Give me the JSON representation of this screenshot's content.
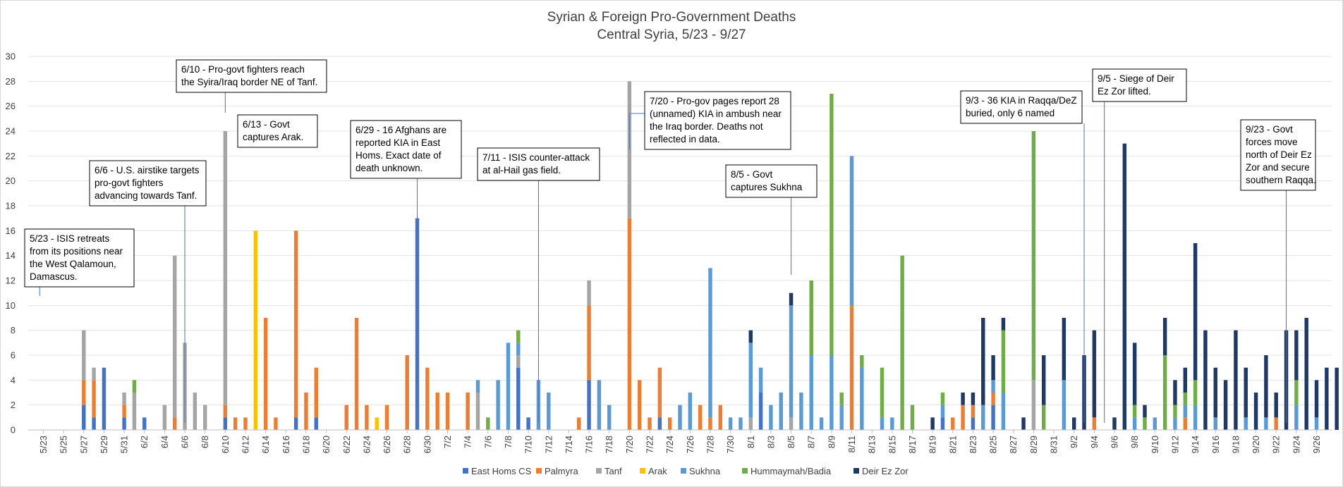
{
  "chart_data": {
    "type": "bar",
    "stacked": true,
    "title": [
      "Syrian & Foreign Pro-Government  Deaths",
      "Central Syria, 5/23 - 9/27"
    ],
    "xlabel": "",
    "ylabel": "",
    "ylim": [
      0,
      30
    ],
    "yticks": [
      0,
      2,
      4,
      6,
      8,
      10,
      12,
      14,
      16,
      18,
      20,
      22,
      24,
      26,
      28,
      30
    ],
    "grid": true,
    "legend_position": "bottom",
    "xtick_labels": [
      "5/23",
      "5/25",
      "5/27",
      "5/29",
      "5/31",
      "6/2",
      "6/4",
      "6/6",
      "6/8",
      "6/10",
      "6/12",
      "6/14",
      "6/16",
      "6/18",
      "6/20",
      "6/22",
      "6/24",
      "6/26",
      "6/28",
      "6/30",
      "7/2",
      "7/4",
      "7/6",
      "7/8",
      "7/10",
      "7/12",
      "7/14",
      "7/16",
      "7/18",
      "7/20",
      "7/22",
      "7/24",
      "7/26",
      "7/28",
      "7/30",
      "8/1",
      "8/3",
      "8/5",
      "8/7",
      "8/9",
      "8/11",
      "8/13",
      "8/15",
      "8/17",
      "8/19",
      "8/21",
      "8/23",
      "8/25",
      "8/27",
      "8/29",
      "8/31",
      "9/2",
      "9/4",
      "9/6",
      "9/8",
      "9/10",
      "9/12",
      "9/14",
      "9/16",
      "9/18",
      "9/20",
      "9/22",
      "9/24",
      "9/26"
    ],
    "series": [
      {
        "name": "East Homs CS",
        "color": "#4472c4",
        "points": [
          [
            "5/27",
            2
          ],
          [
            "5/28",
            1
          ],
          [
            "5/29",
            5
          ],
          [
            "5/31",
            1
          ],
          [
            "6/2",
            1
          ],
          [
            "6/10",
            1
          ],
          [
            "6/17",
            1
          ],
          [
            "6/19",
            1
          ],
          [
            "6/29",
            17
          ],
          [
            "7/9",
            5
          ],
          [
            "7/10",
            1
          ],
          [
            "7/16",
            4
          ],
          [
            "7/23",
            1
          ],
          [
            "8/2",
            3
          ],
          [
            "8/20",
            1
          ],
          [
            "8/23",
            1
          ],
          [
            "8/25",
            2
          ]
        ]
      },
      {
        "name": "Palmyra",
        "color": "#ed7d31",
        "points": [
          [
            "5/27",
            2
          ],
          [
            "5/28",
            3
          ],
          [
            "5/31",
            1
          ],
          [
            "6/5",
            1
          ],
          [
            "6/10",
            1
          ],
          [
            "6/11",
            1
          ],
          [
            "6/12",
            1
          ],
          [
            "6/14",
            9
          ],
          [
            "6/15",
            1
          ],
          [
            "6/17",
            15
          ],
          [
            "6/18",
            3
          ],
          [
            "6/19",
            4
          ],
          [
            "6/22",
            2
          ],
          [
            "6/23",
            9
          ],
          [
            "6/24",
            2
          ],
          [
            "6/26",
            2
          ],
          [
            "6/28",
            6
          ],
          [
            "6/30",
            5
          ],
          [
            "7/1",
            3
          ],
          [
            "7/2",
            3
          ],
          [
            "7/4",
            3
          ],
          [
            "7/15",
            1
          ],
          [
            "7/16",
            6
          ],
          [
            "7/20",
            17
          ],
          [
            "7/21",
            4
          ],
          [
            "7/22",
            1
          ],
          [
            "7/23",
            4
          ],
          [
            "7/24",
            1
          ],
          [
            "7/27",
            2
          ],
          [
            "7/28",
            1
          ],
          [
            "7/29",
            2
          ],
          [
            "8/11",
            10
          ],
          [
            "8/21",
            1
          ],
          [
            "8/22",
            2
          ],
          [
            "8/23",
            1
          ],
          [
            "8/25",
            1
          ],
          [
            "9/4",
            1
          ],
          [
            "9/13",
            1
          ],
          [
            "9/22",
            1
          ]
        ]
      },
      {
        "name": "Tanf",
        "color": "#a5a5a5",
        "points": [
          [
            "5/27",
            4
          ],
          [
            "5/28",
            1
          ],
          [
            "5/31",
            1
          ],
          [
            "6/1",
            3
          ],
          [
            "6/4",
            2
          ],
          [
            "6/5",
            13
          ],
          [
            "6/6",
            7
          ],
          [
            "6/7",
            3
          ],
          [
            "6/8",
            2
          ],
          [
            "6/10",
            22
          ],
          [
            "7/5",
            3
          ],
          [
            "7/9",
            1
          ],
          [
            "7/16",
            2
          ],
          [
            "7/20",
            11
          ],
          [
            "8/1",
            1
          ],
          [
            "8/5",
            1
          ],
          [
            "8/29",
            4
          ]
        ]
      },
      {
        "name": "Arak",
        "color": "#ffc000",
        "points": [
          [
            "6/13",
            16
          ],
          [
            "6/25",
            1
          ]
        ]
      },
      {
        "name": "Sukhna",
        "color": "#5b9bd5",
        "points": [
          [
            "7/5",
            1
          ],
          [
            "7/7",
            4
          ],
          [
            "7/8",
            7
          ],
          [
            "7/9",
            1
          ],
          [
            "7/11",
            4
          ],
          [
            "7/12",
            3
          ],
          [
            "7/17",
            4
          ],
          [
            "7/18",
            2
          ],
          [
            "7/25",
            2
          ],
          [
            "7/26",
            3
          ],
          [
            "7/28",
            12
          ],
          [
            "7/30",
            1
          ],
          [
            "7/31",
            1
          ],
          [
            "8/1",
            6
          ],
          [
            "8/2",
            2
          ],
          [
            "8/3",
            2
          ],
          [
            "8/4",
            3
          ],
          [
            "8/5",
            9
          ],
          [
            "8/6",
            3
          ],
          [
            "8/7",
            6
          ],
          [
            "8/8",
            1
          ],
          [
            "8/9",
            6
          ],
          [
            "8/10",
            2
          ],
          [
            "8/11",
            12
          ],
          [
            "8/12",
            5
          ],
          [
            "8/14",
            1
          ],
          [
            "8/15",
            1
          ],
          [
            "8/20",
            1
          ],
          [
            "8/24",
            2
          ],
          [
            "8/25",
            1
          ],
          [
            "8/26",
            3
          ],
          [
            "9/1",
            4
          ],
          [
            "9/8",
            1
          ],
          [
            "9/10",
            1
          ],
          [
            "9/12",
            1
          ],
          [
            "9/13",
            1
          ],
          [
            "9/14",
            2
          ],
          [
            "9/16",
            1
          ],
          [
            "9/19",
            1
          ],
          [
            "9/21",
            1
          ],
          [
            "9/24",
            2
          ],
          [
            "9/26",
            1
          ]
        ]
      },
      {
        "name": "Hummaymah/Badia",
        "color": "#70ad47",
        "points": [
          [
            "6/1",
            1
          ],
          [
            "7/6",
            1
          ],
          [
            "7/9",
            1
          ],
          [
            "8/7",
            6
          ],
          [
            "8/9",
            21
          ],
          [
            "8/10",
            1
          ],
          [
            "8/12",
            1
          ],
          [
            "8/14",
            4
          ],
          [
            "8/16",
            14
          ],
          [
            "8/17",
            2
          ],
          [
            "8/20",
            1
          ],
          [
            "8/26",
            5
          ],
          [
            "8/29",
            20
          ],
          [
            "8/30",
            2
          ],
          [
            "9/8",
            1
          ],
          [
            "9/9",
            1
          ],
          [
            "9/11",
            6
          ],
          [
            "9/12",
            1
          ],
          [
            "9/13",
            1
          ],
          [
            "9/14",
            2
          ],
          [
            "9/24",
            2
          ]
        ]
      },
      {
        "name": "Deir Ez Zor",
        "color": "#1f3864",
        "points": [
          [
            "8/1",
            1
          ],
          [
            "8/5",
            1
          ],
          [
            "8/19",
            1
          ],
          [
            "8/22",
            1
          ],
          [
            "8/23",
            1
          ],
          [
            "8/24",
            7
          ],
          [
            "8/25",
            2
          ],
          [
            "8/26",
            1
          ],
          [
            "8/28",
            1
          ],
          [
            "8/30",
            4
          ],
          [
            "9/1",
            5
          ],
          [
            "9/2",
            1
          ],
          [
            "9/3",
            6
          ],
          [
            "9/4",
            7
          ],
          [
            "9/6",
            1
          ],
          [
            "9/7",
            23
          ],
          [
            "9/8",
            5
          ],
          [
            "9/9",
            1
          ],
          [
            "9/11",
            3
          ],
          [
            "9/12",
            2
          ],
          [
            "9/13",
            2
          ],
          [
            "9/14",
            11
          ],
          [
            "9/15",
            8
          ],
          [
            "9/16",
            4
          ],
          [
            "9/17",
            4
          ],
          [
            "9/18",
            8
          ],
          [
            "9/19",
            4
          ],
          [
            "9/20",
            3
          ],
          [
            "9/21",
            5
          ],
          [
            "9/22",
            2
          ],
          [
            "9/23",
            8
          ],
          [
            "9/24",
            4
          ],
          [
            "9/25",
            9
          ],
          [
            "9/26",
            3
          ],
          [
            "9/27",
            5
          ],
          [
            "9/28",
            5
          ]
        ]
      }
    ],
    "annotations": [
      {
        "text": [
          "5/23 - ISIS retreats",
          "from its positions near",
          "the West Qalamoun,",
          "Damascus."
        ],
        "date": "5/23"
      },
      {
        "text": [
          "6/6 - U.S. airstike targets",
          "pro-govt  fighters",
          "advancing towards Tanf."
        ],
        "date": "6/6"
      },
      {
        "text": [
          "6/10 - Pro-govt fighters reach",
          "the Syira/Iraq border NE of Tanf."
        ],
        "date": "6/10"
      },
      {
        "text": [
          "6/13 - Govt",
          "captures Arak."
        ],
        "date": "6/13"
      },
      {
        "text": [
          "6/29 - 16 Afghans are",
          "reported KIA in East",
          "Homs. Exact date of",
          "death unknown."
        ],
        "date": "6/29"
      },
      {
        "text": [
          "7/11 - ISIS counter-attack",
          "at al-Hail gas field."
        ],
        "date": "7/11"
      },
      {
        "text": [
          "7/20 - Pro-gov pages report 28",
          "(unnamed) KIA in ambush near",
          "the Iraq border. Deaths not",
          "reflected in data."
        ],
        "date": "7/20"
      },
      {
        "text": [
          "8/5 - Govt",
          "captures Sukhna"
        ],
        "date": "8/5"
      },
      {
        "text": [
          "9/3 - 36 KIA in Raqqa/DeZ",
          "buried, only 6 named"
        ],
        "date": "9/3"
      },
      {
        "text": [
          "9/5 - Siege of Deir",
          "Ez Zor lifted."
        ],
        "date": "9/5"
      },
      {
        "text": [
          "9/23 - Govt",
          "forces move",
          "north of Deir Ez",
          "Zor and secure",
          "southern Raqqa."
        ],
        "date": "9/23"
      }
    ]
  }
}
